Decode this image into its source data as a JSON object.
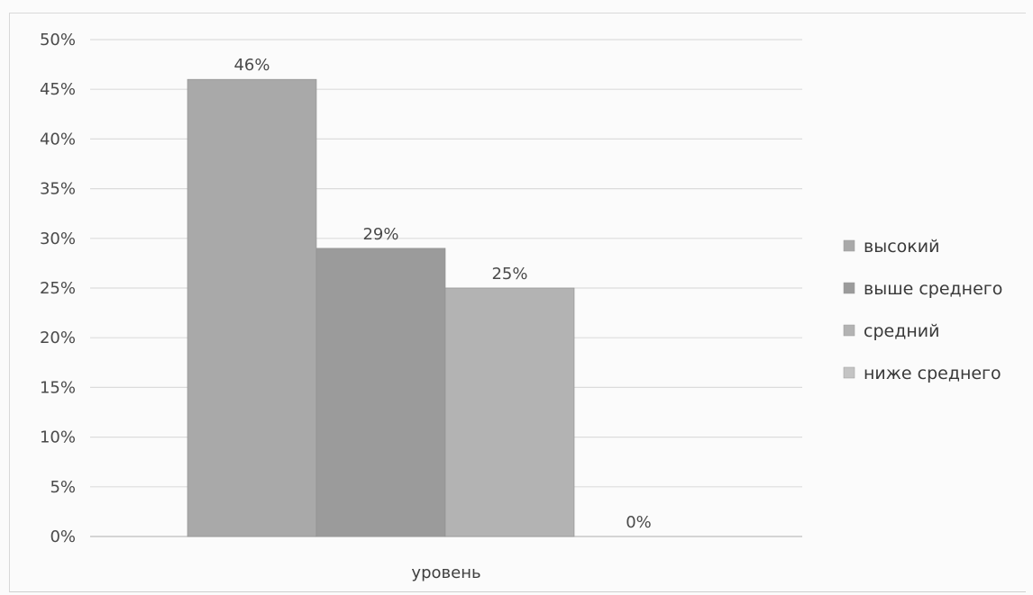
{
  "chart_data": {
    "type": "bar",
    "categories": [
      "уровень"
    ],
    "series": [
      {
        "name": "высокий",
        "values": [
          46
        ],
        "label": "46%"
      },
      {
        "name": "выше среднего",
        "values": [
          29
        ],
        "label": "29%"
      },
      {
        "name": "средний",
        "values": [
          25
        ],
        "label": "25%"
      },
      {
        "name": "ниже среднего",
        "values": [
          0
        ],
        "label": "0%"
      }
    ],
    "ylim": [
      0,
      50
    ],
    "y_ticks": [
      "0%",
      "5%",
      "10%",
      "15%",
      "20%",
      "25%",
      "30%",
      "35%",
      "40%",
      "45%",
      "50%"
    ],
    "grid": true,
    "legend_position": "right",
    "colors": [
      "#a9a9a9",
      "#9b9b9b",
      "#b3b3b3",
      "#c4c4c4"
    ]
  }
}
